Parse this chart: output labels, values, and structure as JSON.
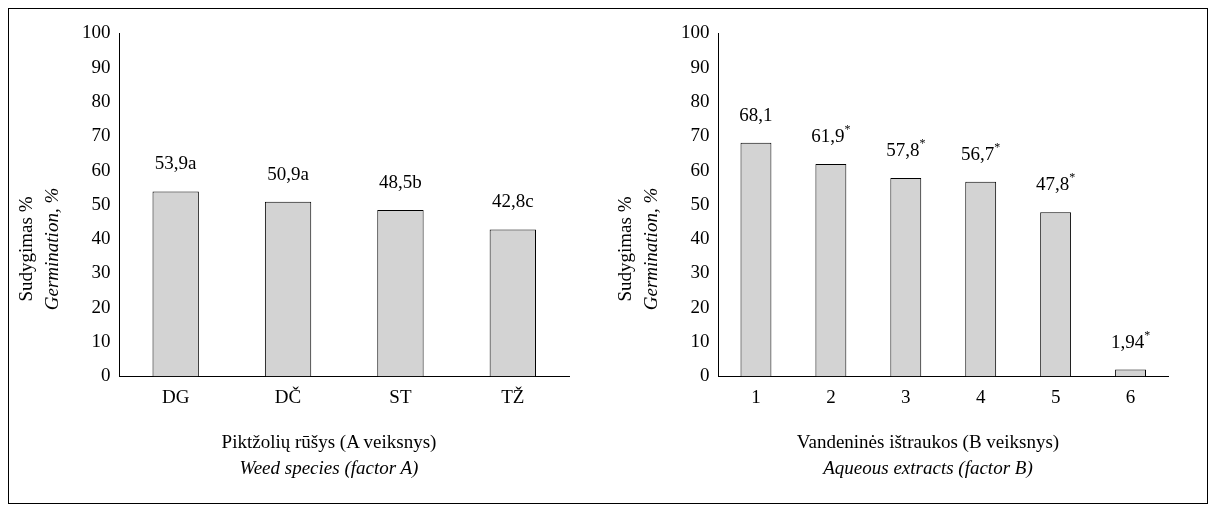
{
  "chart_data": [
    {
      "type": "bar",
      "categories": [
        "DG",
        "DČ",
        "ST",
        "TŽ"
      ],
      "values": [
        53.9,
        50.9,
        48.5,
        42.8
      ],
      "color": "#d3d3d3",
      "value_labels": [
        "53,9a",
        "50,9a",
        "48,5b",
        "42,8c"
      ],
      "ylim": [
        0,
        100
      ],
      "yticks": [
        0,
        10,
        20,
        30,
        40,
        50,
        60,
        70,
        80,
        90,
        100
      ],
      "grid": false,
      "legend": false,
      "ylabel": "Sudygimas %\nGermination, %",
      "xlabel": "Piktžolių rūšys (A veiksnys)\nWeed species (factor A)"
    },
    {
      "type": "bar",
      "categories": [
        "1",
        "2",
        "3",
        "4",
        "5",
        "6"
      ],
      "values": [
        68.1,
        61.9,
        57.8,
        56.7,
        47.8,
        1.94
      ],
      "color": "#d3d3d3",
      "value_labels": [
        "68,1",
        "61,9$^{*}$",
        "57,8$^{*}$",
        "56,7$^{*}$",
        "47,8$^{*}$",
        "1,94$^{*}$"
      ],
      "ylim": [
        0,
        100
      ],
      "yticks": [
        0,
        10,
        20,
        30,
        40,
        50,
        60,
        70,
        80,
        90,
        100
      ],
      "grid": false,
      "legend": false,
      "ylabel": "Sudygimas %\nGermination, %",
      "xlabel": "Vandeninės ištraukos (B veiksnys)\nAqueous extracts (factor B)"
    }
  ]
}
